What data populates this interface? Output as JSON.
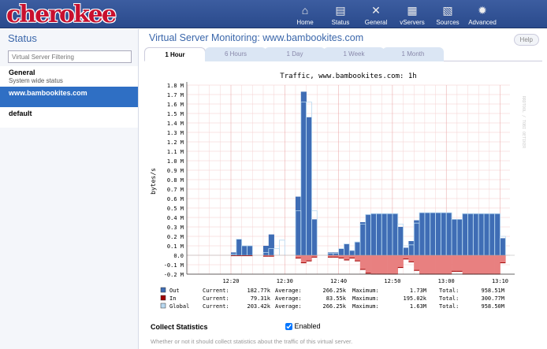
{
  "header": {
    "logo": "cherokee",
    "nav": [
      {
        "label": "Home",
        "icon": "home-icon"
      },
      {
        "label": "Status",
        "icon": "status-icon"
      },
      {
        "label": "General",
        "icon": "tools-icon"
      },
      {
        "label": "vServers",
        "icon": "vservers-icon"
      },
      {
        "label": "Sources",
        "icon": "sources-icon"
      },
      {
        "label": "Advanced",
        "icon": "gear-icon"
      }
    ]
  },
  "sidebar": {
    "title": "Status",
    "filter_placeholder": "Virtual Server Filtering",
    "items": [
      {
        "name": "General",
        "desc": "System wide status"
      },
      {
        "name": "www.bambookites.com",
        "desc": ""
      },
      {
        "name": "default",
        "desc": ""
      }
    ]
  },
  "main": {
    "title": "Virtual Server Monitoring: www.bambookites.com",
    "help": "Help",
    "tabs": [
      "1 Hour",
      "6 Hours",
      "1 Day",
      "1 Week",
      "1 Month"
    ],
    "active_tab": "1 Hour",
    "collect_label": "Collect Statistics",
    "enabled_label": "Enabled",
    "enabled": true,
    "collect_desc": "Whether or not it should collect statistics about the traffic of this virtual server."
  },
  "chart_data": {
    "type": "area",
    "title": "Traffic, www.bambookites.com: 1h",
    "ylabel": "bytes/s",
    "watermark": "RRDTOOL / TOBI OETIKER",
    "ylim": [
      -0.2,
      1.8
    ],
    "yticks": [
      "1.8 M",
      "1.7 M",
      "1.6 M",
      "1.5 M",
      "1.4 M",
      "1.3 M",
      "1.2 M",
      "1.1 M",
      "1.0 M",
      "0.9 M",
      "0.8 M",
      "0.7 M",
      "0.6 M",
      "0.5 M",
      "0.4 M",
      "0.3 M",
      "0.2 M",
      "0.1 M",
      "0.0",
      "-0.1 M",
      "-0.2 M"
    ],
    "xticks": [
      "12:20",
      "12:30",
      "12:40",
      "12:50",
      "13:00",
      "13:10"
    ],
    "x_start": "12:20",
    "x_step_minutes": 1,
    "series": [
      {
        "name": "Out",
        "color": "#3f6db5",
        "unit": "M bytes/s",
        "values": [
          0.03,
          0.17,
          0.1,
          0.1,
          null,
          null,
          0.1,
          0.22,
          null,
          null,
          null,
          null,
          0.62,
          1.73,
          1.46,
          0.38,
          null,
          null,
          0.03,
          0.03,
          0.07,
          0.12,
          0.05,
          0.14,
          0.35,
          0.43,
          0.44,
          0.44,
          0.44,
          0.44,
          0.44,
          0.3,
          0.08,
          0.15,
          0.37,
          0.45,
          0.45,
          0.45,
          0.45,
          0.45,
          0.45,
          0.38,
          0.38,
          0.44,
          0.44,
          0.44,
          0.44,
          0.44,
          0.44,
          0.44,
          0.18
        ]
      },
      {
        "name": "In",
        "color": "#a00000",
        "fill": "#e88080",
        "unit": "M bytes/s",
        "values": [
          0.005,
          0.005,
          0.005,
          0.005,
          null,
          null,
          0.01,
          0.01,
          null,
          null,
          null,
          null,
          0.03,
          0.08,
          0.06,
          0.02,
          null,
          null,
          0.02,
          0.02,
          0.03,
          0.05,
          0.03,
          0.06,
          0.15,
          0.19,
          0.2,
          0.2,
          0.2,
          0.2,
          0.2,
          0.13,
          0.04,
          0.07,
          0.16,
          0.2,
          0.2,
          0.2,
          0.2,
          0.2,
          0.2,
          0.17,
          0.17,
          0.2,
          0.2,
          0.2,
          0.2,
          0.2,
          0.2,
          0.2,
          0.08
        ]
      },
      {
        "name": "Global",
        "color": "#b8d8f0",
        "unit": "M bytes/s",
        "values": [
          0.01,
          0.17,
          0.1,
          0.1,
          null,
          null,
          0.03,
          0.07,
          0.07,
          0.16,
          null,
          null,
          0.47,
          1.62,
          1.62,
          0.47,
          null,
          null,
          0.02,
          0.02,
          0.07,
          0.12,
          0.05,
          0.14,
          0.33,
          0.43,
          0.44,
          0.44,
          0.44,
          0.44,
          0.44,
          0.33,
          0.1,
          0.11,
          0.34,
          0.45,
          0.45,
          0.45,
          0.45,
          0.45,
          0.45,
          0.38,
          0.38,
          0.44,
          0.44,
          0.44,
          0.44,
          0.44,
          0.44,
          0.44,
          0.2
        ]
      }
    ],
    "legend": [
      {
        "name": "Out",
        "current": "182.77k",
        "average": "266.25k",
        "maximum": "1.73M",
        "total": "958.51M"
      },
      {
        "name": "In",
        "current": "79.31k",
        "average": "83.55k",
        "maximum": "195.02k",
        "total": "300.77M"
      },
      {
        "name": "Global",
        "current": "203.42k",
        "average": "266.25k",
        "maximum": "1.63M",
        "total": "958.50M"
      }
    ],
    "legend_labels": {
      "current": "Current:",
      "average": "Average:",
      "maximum": "Maximum:",
      "total": "Total:"
    }
  }
}
